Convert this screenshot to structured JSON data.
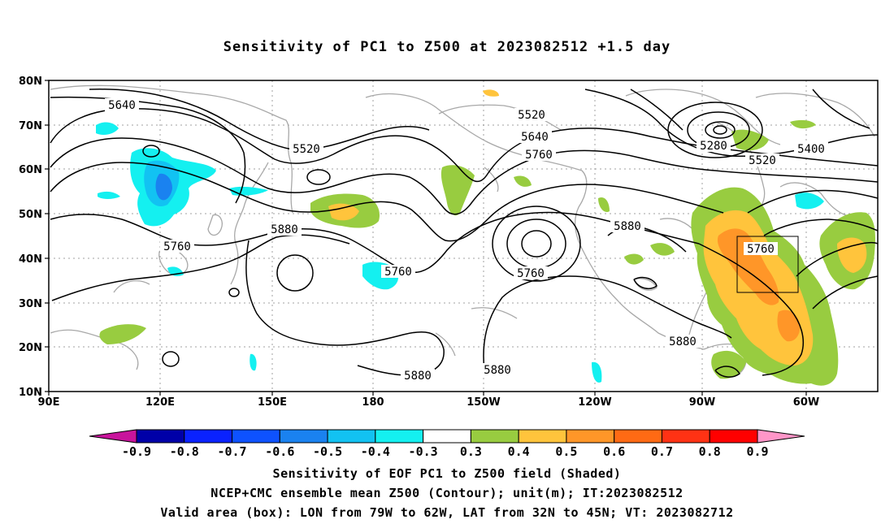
{
  "title": "Sensitivity of PC1 to Z500 at 2023082512 +1.5 day",
  "map": {
    "lat_ticks": [
      "80N",
      "70N",
      "60N",
      "50N",
      "40N",
      "30N",
      "20N",
      "10N"
    ],
    "lon_ticks": [
      "90E",
      "120E",
      "150E",
      "180",
      "150W",
      "120W",
      "90W",
      "60W"
    ],
    "contour_labels": [
      "5640",
      "5520",
      "5520",
      "5640",
      "5760",
      "5280",
      "5400",
      "5520",
      "5760",
      "5880",
      "5760",
      "5760",
      "5880",
      "5760",
      "5880",
      "5880",
      "5880"
    ],
    "colors": {
      "contour": "#000000",
      "coast": "#a8a8a8",
      "grid": "#a0a0a0",
      "green": "#98cc40",
      "yellow": "#ffc43c",
      "orange": "#ff9628",
      "cyan": "#14f0f0",
      "light_blue": "#12c2f2",
      "mid_blue": "#1a82f0"
    }
  },
  "colorbar": {
    "labels": [
      "-0.9",
      "-0.8",
      "-0.7",
      "-0.6",
      "-0.5",
      "-0.4",
      "-0.3",
      "0.3",
      "0.4",
      "0.5",
      "0.6",
      "0.7",
      "0.8",
      "0.9"
    ],
    "colors": [
      "#0000a8",
      "#0a22ff",
      "#0e52ff",
      "#1a82f0",
      "#12c2f2",
      "#14f0f0",
      "#ffffff",
      "#98cc40",
      "#ffc43c",
      "#ff9628",
      "#ff6a14",
      "#ff3214",
      "#ff0000"
    ],
    "left_end_color": "#c8149c",
    "right_end_color": "#ff96c8"
  },
  "caption": [
    "Sensitivity of EOF PC1 to Z500 field (Shaded)",
    "NCEP+CMC ensemble mean Z500 (Contour); unit(m); IT:2023082512",
    "Valid area (box): LON from 79W to 62W, LAT from 32N to 45N; VT: 2023082712"
  ]
}
